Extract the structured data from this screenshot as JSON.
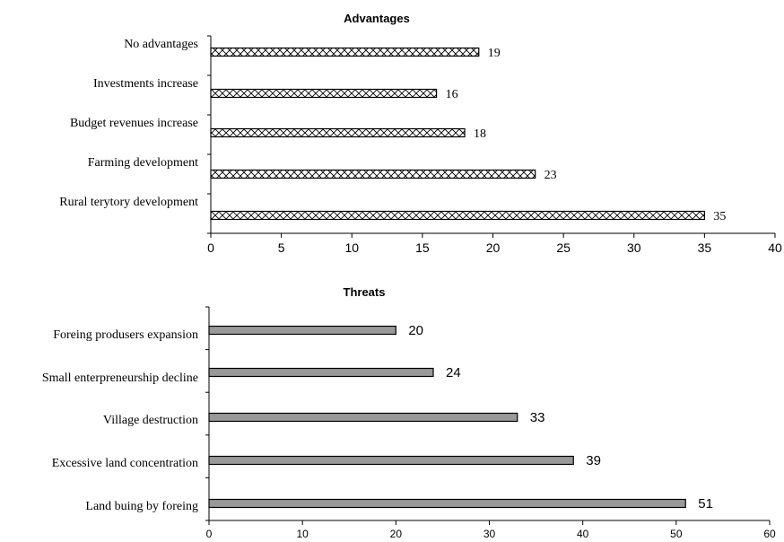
{
  "chart_data": [
    {
      "type": "bar",
      "orientation": "horizontal",
      "title": "Advantages",
      "categories": [
        "No advantages",
        "Investments increase",
        "Budget revenues increase",
        "Farming development",
        "Rural terytory development"
      ],
      "values": [
        19,
        16,
        18,
        23,
        35
      ],
      "xlim": [
        0,
        40
      ],
      "xticks": [
        "0",
        "5",
        "10",
        "15",
        "20",
        "25",
        "30",
        "35",
        "40"
      ],
      "bar_fill": "hatched",
      "grid": false
    },
    {
      "type": "bar",
      "orientation": "horizontal",
      "title": "Threats",
      "categories": [
        "Foreing produsers expansion",
        "Small enterpreneurship decline",
        "Village destruction",
        "Excessive land concentration",
        "Land buing by foreing"
      ],
      "values": [
        20,
        24,
        33,
        39,
        51
      ],
      "xlim": [
        0,
        60
      ],
      "xticks": [
        "0",
        "10",
        "20",
        "30",
        "40",
        "50",
        "60"
      ],
      "bar_color": "#999999",
      "grid": false
    }
  ]
}
